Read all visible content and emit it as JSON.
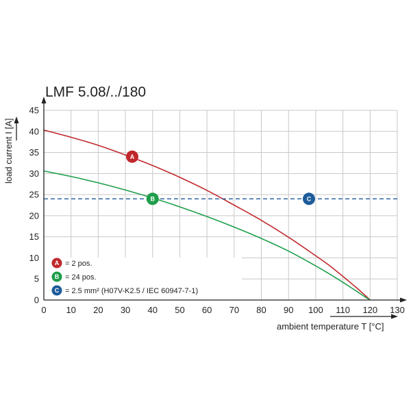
{
  "chart_data": {
    "type": "line",
    "title": "LMF 5.08/../180",
    "xlabel": "ambient temperature T [°C]",
    "ylabel": "load current I [A]",
    "xlim": [
      0,
      130
    ],
    "ylim": [
      0,
      45
    ],
    "x_ticks": [
      0,
      10,
      20,
      30,
      40,
      50,
      60,
      70,
      80,
      90,
      100,
      110,
      120,
      130
    ],
    "y_ticks": [
      0,
      5,
      10,
      15,
      20,
      25,
      30,
      35,
      40,
      45
    ],
    "grid": true,
    "series": [
      {
        "marker": "A",
        "color": "#c0282d",
        "x": [
          0,
          10,
          20,
          30,
          40,
          50,
          60,
          70,
          80,
          90,
          100,
          105,
          110,
          115,
          118,
          120
        ],
        "y": [
          40.3,
          38.6,
          36.7,
          34.4,
          31.9,
          29.1,
          26.0,
          22.5,
          18.9,
          14.9,
          10.5,
          8.2,
          5.6,
          2.9,
          1.2,
          0
        ]
      },
      {
        "marker": "B",
        "color": "#1e9e4a",
        "x": [
          0,
          10,
          20,
          30,
          40,
          50,
          60,
          70,
          80,
          90,
          100,
          105,
          110,
          115,
          118,
          120
        ],
        "y": [
          30.6,
          29.3,
          27.8,
          26.1,
          24.2,
          22.1,
          19.8,
          17.3,
          14.6,
          11.6,
          8.1,
          6.2,
          4.2,
          2.1,
          0.8,
          0
        ]
      },
      {
        "marker": "C",
        "color": "#1d5b9b",
        "dashed": true,
        "x": [
          0,
          130
        ],
        "y": [
          24,
          24
        ]
      }
    ],
    "markers": [
      {
        "letter": "A",
        "x": 32.5,
        "y": 34,
        "color": "#c0282d"
      },
      {
        "letter": "B",
        "x": 40,
        "y": 24,
        "color": "#1e9e4a"
      },
      {
        "letter": "C",
        "x": 97.5,
        "y": 24,
        "color": "#1d5b9b"
      }
    ],
    "legend": {
      "position": "bottom-left",
      "entries": [
        {
          "letter": "A",
          "color": "#c0282d",
          "text": "= 2 pos."
        },
        {
          "letter": "B",
          "color": "#1e9e4a",
          "text": "= 24 pos."
        },
        {
          "letter": "C",
          "color": "#1d5b9b",
          "text": "= 2.5 mm² (H07V-K2.5 / IEC 60947-7-1)"
        }
      ]
    }
  }
}
